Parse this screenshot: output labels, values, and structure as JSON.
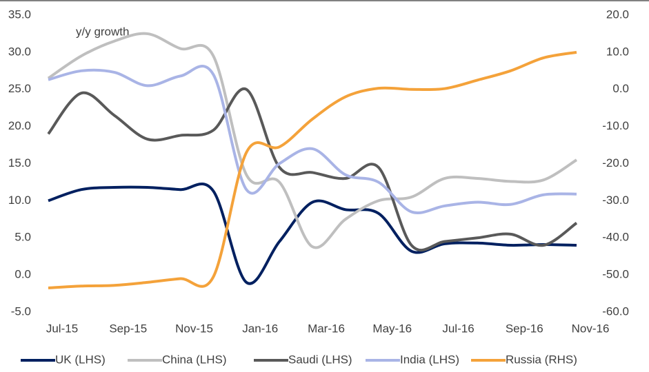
{
  "chart_data": {
    "type": "line",
    "annotation": "y/y growth",
    "categories": [
      "Jul-15",
      null,
      "Sep-15",
      null,
      "Nov-15",
      null,
      "Jan-16",
      null,
      "Mar-16",
      null,
      "May-16",
      null,
      "Jul-16",
      null,
      "Sep-16",
      null,
      "Nov-16"
    ],
    "series": [
      {
        "name": "UK (LHS)",
        "color": "#002060",
        "values": [
          10.0,
          11.5,
          11.8,
          11.8,
          11.5,
          11.3,
          -1.0,
          4.5,
          9.8,
          8.8,
          8.3,
          3.2,
          4.2,
          4.3,
          4.0,
          4.1,
          4.0
        ]
      },
      {
        "name": "China (LHS)",
        "color": "#bfbfbf",
        "values": [
          26.5,
          29.5,
          31.5,
          32.5,
          30.5,
          29.5,
          13.5,
          12.5,
          3.8,
          7.5,
          10.0,
          10.5,
          13.0,
          13.0,
          12.6,
          12.8,
          15.5
        ]
      },
      {
        "name": "Saudi (LHS)",
        "color": "#595959",
        "values": [
          19.0,
          24.5,
          21.5,
          18.3,
          18.8,
          19.5,
          25.0,
          14.5,
          13.8,
          13.0,
          14.5,
          4.0,
          4.5,
          5.0,
          5.5,
          4.0,
          7.0
        ]
      },
      {
        "name": "India (LHS)",
        "color": "#a9b4e6",
        "values": [
          26.3,
          27.5,
          27.3,
          25.5,
          26.8,
          27.0,
          11.5,
          15.0,
          17.0,
          13.5,
          12.5,
          8.5,
          9.3,
          9.8,
          9.5,
          10.8,
          10.9
        ]
      },
      {
        "name": "Russia (RHS)",
        "color": "#f4a23a",
        "axis": "y2",
        "values": [
          -53.5,
          -53.0,
          -52.8,
          -52.0,
          -51.0,
          -50.5,
          -17.0,
          -15.5,
          -8.0,
          -2.0,
          0.3,
          0.0,
          0.2,
          2.5,
          5.0,
          8.5,
          10.0
        ]
      }
    ],
    "ylim": [
      -5,
      35
    ],
    "yticks": [
      {
        "value": 35,
        "label": "35.0"
      },
      {
        "value": 30,
        "label": "30.0"
      },
      {
        "value": 25,
        "label": "25.0"
      },
      {
        "value": 20,
        "label": "20.0"
      },
      {
        "value": 15,
        "label": "15.0"
      },
      {
        "value": 10,
        "label": "10.0"
      },
      {
        "value": 5,
        "label": "5.0"
      },
      {
        "value": 0,
        "label": "0.0"
      },
      {
        "value": -5,
        "label": "-5.0"
      }
    ],
    "y2lim": [
      -60,
      20
    ],
    "y2ticks": [
      {
        "value": 20,
        "label": "20.0"
      },
      {
        "value": 10,
        "label": "10.0"
      },
      {
        "value": 0,
        "label": "0.0"
      },
      {
        "value": -10,
        "label": "-10.0"
      },
      {
        "value": -20,
        "label": "-20.0"
      },
      {
        "value": -30,
        "label": "-30.0"
      },
      {
        "value": -40,
        "label": "-40.0"
      },
      {
        "value": -50,
        "label": "-50.0"
      },
      {
        "value": -60,
        "label": "-60.0"
      }
    ],
    "legend": "bottom"
  }
}
